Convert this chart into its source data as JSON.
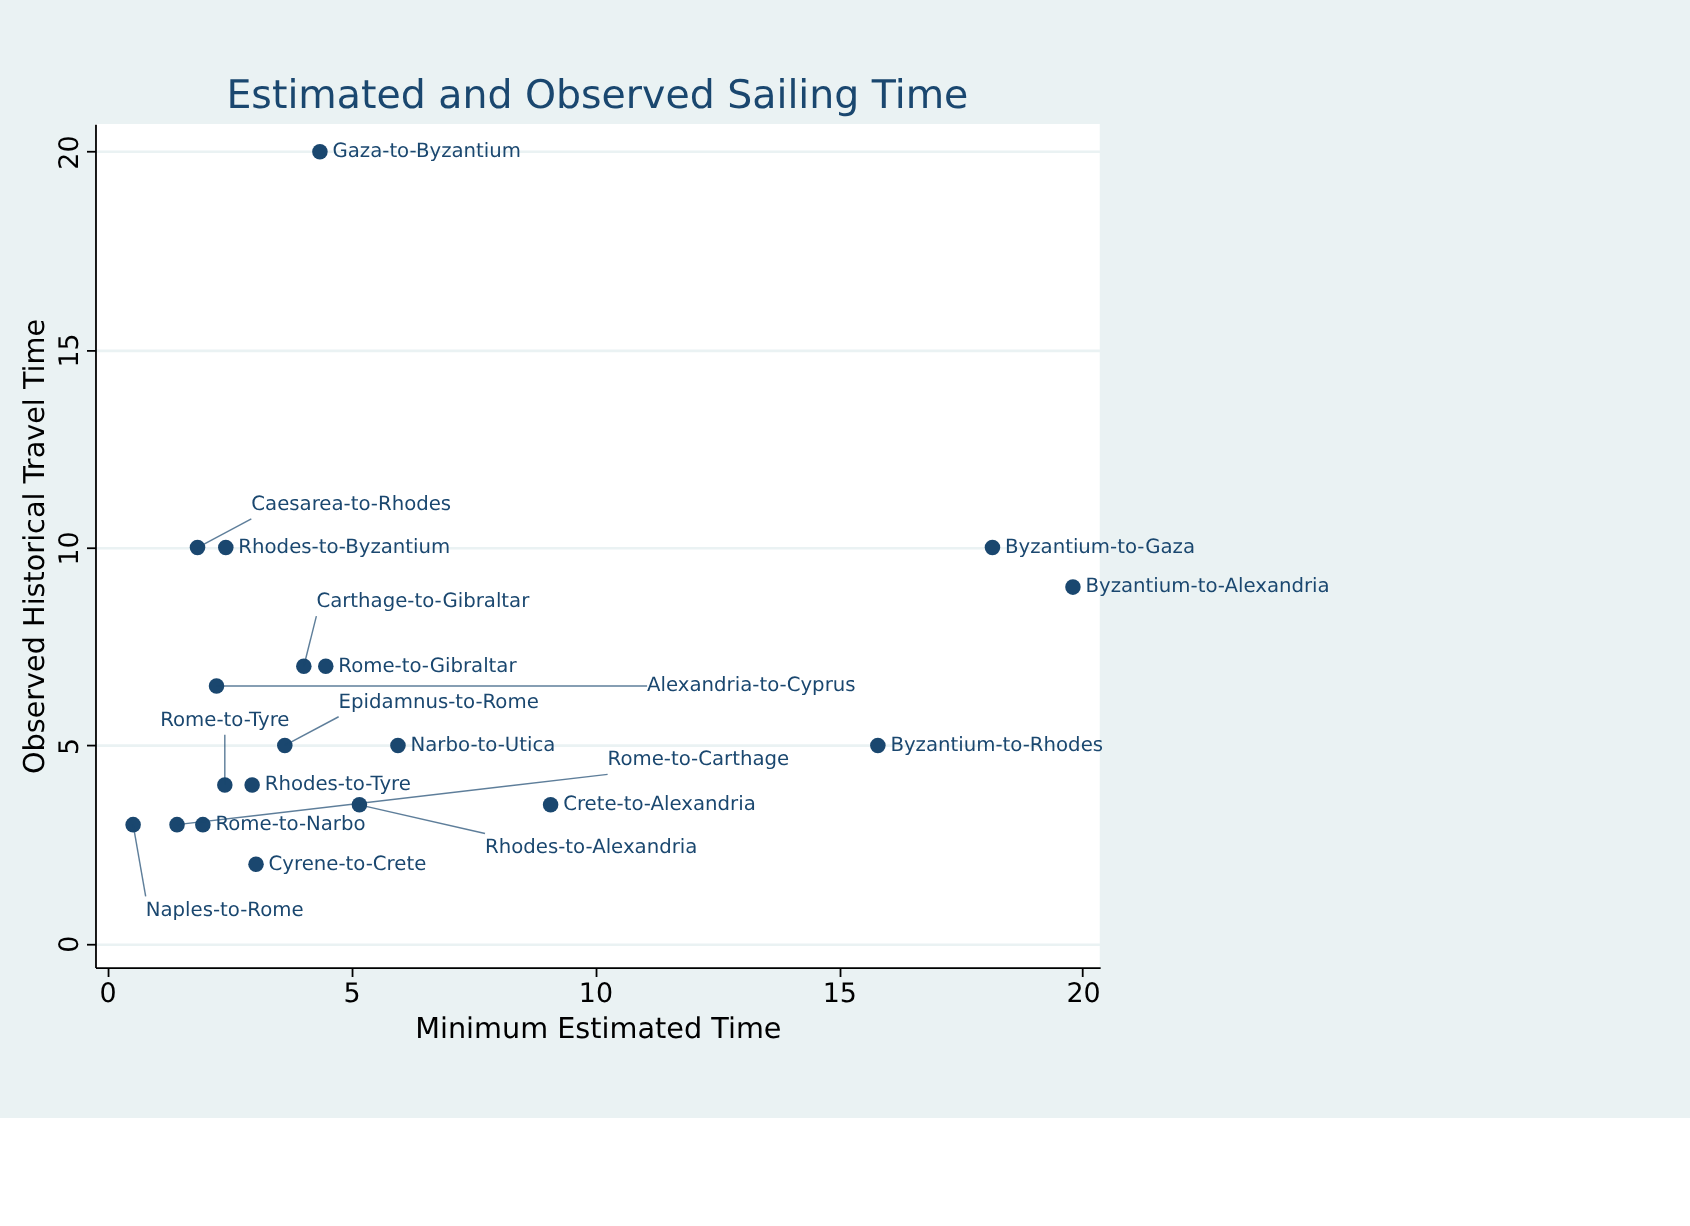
{
  "chart_data": {
    "type": "scatter",
    "title": "Estimated and Observed Sailing Time",
    "xlabel": "Minimum Estimated Time",
    "ylabel": "Observed Historical Travel Time",
    "x": [
      4.36,
      18.15,
      19.8,
      15.8,
      1.85,
      2.43,
      4.03,
      4.48,
      2.24,
      3.64,
      5.96,
      2.41,
      2.97,
      5.17,
      9.09,
      0.53,
      1.43,
      1.96,
      3.05
    ],
    "series": [
      {
        "color": "#1a476f",
        "values": [
          20,
          10,
          9,
          5,
          10,
          10,
          7,
          7,
          6.5,
          5,
          5,
          4,
          4,
          3.5,
          3.5,
          3,
          3,
          3,
          2
        ]
      }
    ],
    "annotations": [
      {
        "text": "Gaza-to-Byzantium",
        "x": 4.36,
        "y": 20
      },
      {
        "text": "Byzantium-to-Gaza",
        "x": 18.15,
        "y": 10
      },
      {
        "text": "Byzantium-to-Alexandria",
        "x": 19.8,
        "y": 9
      },
      {
        "text": "Byzantium-to-Rhodes",
        "x": 15.8,
        "y": 5
      },
      {
        "text": "Caesarea-to-Rhodes",
        "x": 1.85,
        "y": 10
      },
      {
        "text": "Rhodes-to-Byzantium",
        "x": 2.43,
        "y": 10
      },
      {
        "text": "Carthage-to-Gibraltar",
        "x": 4.03,
        "y": 7
      },
      {
        "text": "Rome-to-Gibraltar",
        "x": 4.48,
        "y": 7
      },
      {
        "text": "Alexandria-to-Cyprus",
        "x": 2.24,
        "y": 6.5
      },
      {
        "text": "Epidamnus-to-Rome",
        "x": 3.64,
        "y": 5
      },
      {
        "text": "Narbo-to-Utica",
        "x": 5.96,
        "y": 5
      },
      {
        "text": "Rome-to-Tyre",
        "x": 2.41,
        "y": 4
      },
      {
        "text": "Rhodes-to-Tyre",
        "x": 2.97,
        "y": 4
      },
      {
        "text": "Rhodes-to-Alexandria",
        "x": 5.17,
        "y": 3.5
      },
      {
        "text": "Crete-to-Alexandria",
        "x": 9.09,
        "y": 3.5
      },
      {
        "text": "Naples-to-Rome",
        "x": 0.53,
        "y": 3
      },
      {
        "text": "Rome-to-Carthage",
        "x": 1.43,
        "y": 3
      },
      {
        "text": "Rome-to-Narbo",
        "x": 1.96,
        "y": 3
      },
      {
        "text": "Cyrene-to-Crete",
        "x": 3.05,
        "y": 2
      }
    ],
    "xlim": [
      -0.25,
      20.35
    ],
    "xticks": [
      0,
      5,
      10,
      15,
      20
    ],
    "ylim": [
      -0.6,
      20.7
    ],
    "yticks": [
      0,
      5,
      10,
      15,
      20
    ],
    "grid": "y",
    "marker": "circle"
  }
}
